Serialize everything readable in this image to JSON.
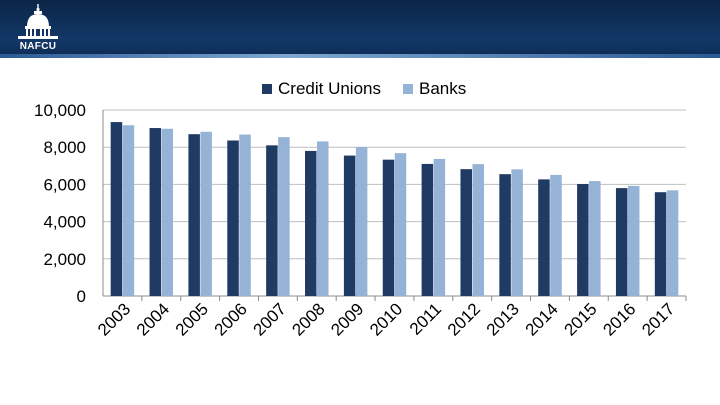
{
  "header": {
    "logo_text": "NAFCU",
    "band_color": "#123868"
  },
  "colors": {
    "credit_unions": "#1f3a63",
    "banks": "#95b3d7"
  },
  "chart_data": {
    "type": "bar",
    "title": "",
    "xlabel": "",
    "ylabel": "",
    "categories": [
      "2003",
      "2004",
      "2005",
      "2006",
      "2007",
      "2008",
      "2009",
      "2010",
      "2011",
      "2012",
      "2013",
      "2014",
      "2015",
      "2016",
      "2017"
    ],
    "series": [
      {
        "name": "Credit Unions",
        "values": [
          9350,
          9030,
          8700,
          8360,
          8100,
          7800,
          7550,
          7330,
          7100,
          6820,
          6550,
          6270,
          6020,
          5800,
          5580
        ]
      },
      {
        "name": "Banks",
        "values": [
          9180,
          8990,
          8830,
          8680,
          8540,
          8310,
          8010,
          7680,
          7370,
          7090,
          6810,
          6510,
          6180,
          5920,
          5680
        ]
      }
    ],
    "ylim": [
      0,
      10000
    ],
    "yticks": [
      0,
      2000,
      4000,
      6000,
      8000,
      10000
    ],
    "ytick_labels": [
      "0",
      "2,000",
      "4,000",
      "6,000",
      "8,000",
      "10,000"
    ],
    "grid": true,
    "legend": "top"
  }
}
